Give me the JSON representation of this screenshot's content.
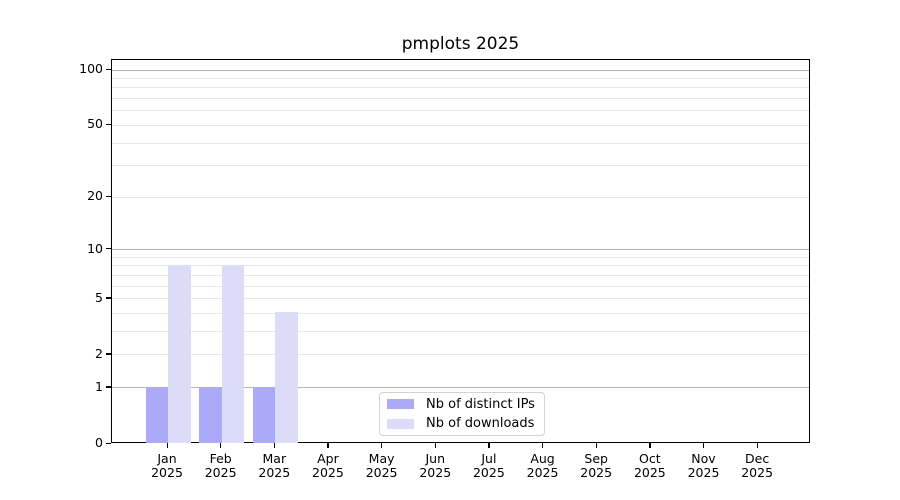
{
  "chart_data": {
    "type": "bar",
    "title": "pmplots 2025",
    "categories": [
      {
        "month": "Jan",
        "year": "2025"
      },
      {
        "month": "Feb",
        "year": "2025"
      },
      {
        "month": "Mar",
        "year": "2025"
      },
      {
        "month": "Apr",
        "year": "2025"
      },
      {
        "month": "May",
        "year": "2025"
      },
      {
        "month": "Jun",
        "year": "2025"
      },
      {
        "month": "Jul",
        "year": "2025"
      },
      {
        "month": "Aug",
        "year": "2025"
      },
      {
        "month": "Sep",
        "year": "2025"
      },
      {
        "month": "Oct",
        "year": "2025"
      },
      {
        "month": "Nov",
        "year": "2025"
      },
      {
        "month": "Dec",
        "year": "2025"
      }
    ],
    "series": [
      {
        "name": "Nb of distinct IPs",
        "color": "#aaaaf8",
        "values": [
          1,
          1,
          1,
          0,
          0,
          0,
          0,
          0,
          0,
          0,
          0,
          0
        ]
      },
      {
        "name": "Nb of downloads",
        "color": "#dcdcf8",
        "values": [
          8,
          8,
          4,
          0,
          0,
          0,
          0,
          0,
          0,
          0,
          0,
          0
        ]
      }
    ],
    "y_axis": {
      "scale": "log1p",
      "tick_labels": [
        "0",
        "1",
        "2",
        "5",
        "10",
        "20",
        "50",
        "100"
      ],
      "tick_values": [
        0,
        1,
        2,
        5,
        10,
        20,
        50,
        100
      ],
      "major_grid_values": [
        1,
        10,
        100
      ],
      "minor_grid_values": [
        2,
        3,
        4,
        5,
        6,
        7,
        8,
        9,
        20,
        30,
        40,
        50,
        60,
        70,
        80,
        90
      ],
      "ylim": [
        0,
        100
      ]
    },
    "legend": {
      "position": "lower center"
    },
    "grid": true,
    "colors": {
      "major_grid": "#b4b4b4",
      "minor_grid": "#e7e7e7",
      "axis": "#000000",
      "background": "#ffffff",
      "text": "#000000"
    }
  }
}
